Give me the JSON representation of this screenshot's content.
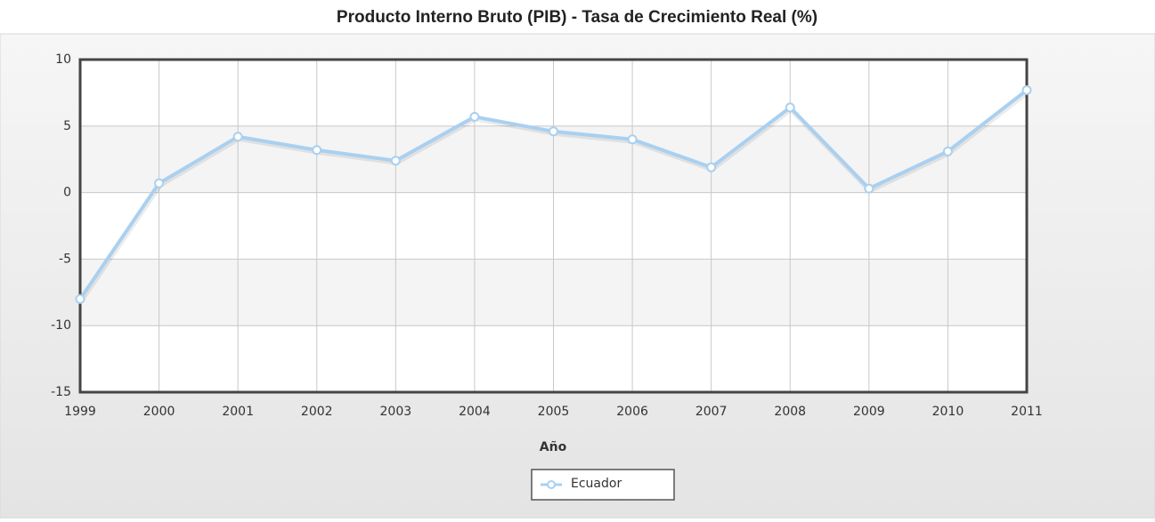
{
  "chart_data": {
    "type": "line",
    "title": "Producto Interno Bruto (PIB) - Tasa de Crecimiento Real (%)",
    "x_label": "Año",
    "x": [
      1999,
      2000,
      2001,
      2002,
      2003,
      2004,
      2005,
      2006,
      2007,
      2008,
      2009,
      2010,
      2011
    ],
    "series": [
      {
        "name": "Ecuador",
        "color": "#a9d0f0",
        "values": [
          -8,
          0.7,
          4.2,
          3.2,
          2.4,
          5.7,
          4.6,
          4.0,
          1.9,
          6.4,
          0.3,
          3.1,
          7.7
        ]
      }
    ],
    "xlim": [
      1999,
      2011
    ],
    "xticks": [
      1999,
      2000,
      2001,
      2002,
      2003,
      2004,
      2005,
      2006,
      2007,
      2008,
      2009,
      2010,
      2011
    ],
    "ylim": [
      -15,
      10
    ],
    "yticks": [
      -15,
      -10,
      -5,
      0,
      5,
      10
    ],
    "grid": true,
    "legend": "bottom"
  }
}
